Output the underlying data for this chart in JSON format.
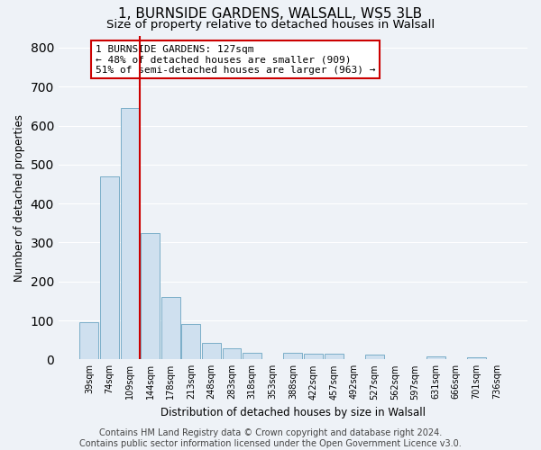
{
  "title": "1, BURNSIDE GARDENS, WALSALL, WS5 3LB",
  "subtitle": "Size of property relative to detached houses in Walsall",
  "xlabel": "Distribution of detached houses by size in Walsall",
  "ylabel": "Number of detached properties",
  "bar_labels": [
    "39sqm",
    "74sqm",
    "109sqm",
    "144sqm",
    "178sqm",
    "213sqm",
    "248sqm",
    "283sqm",
    "318sqm",
    "353sqm",
    "388sqm",
    "422sqm",
    "457sqm",
    "492sqm",
    "527sqm",
    "562sqm",
    "597sqm",
    "631sqm",
    "666sqm",
    "701sqm",
    "736sqm"
  ],
  "bar_values": [
    95,
    470,
    645,
    325,
    160,
    90,
    42,
    28,
    18,
    0,
    18,
    15,
    15,
    0,
    12,
    0,
    0,
    8,
    0,
    5,
    0
  ],
  "bar_color": "#cfe0ef",
  "bar_edge_color": "#7aaec8",
  "red_line_index": 2.5,
  "annotation_text": "1 BURNSIDE GARDENS: 127sqm\n← 48% of detached houses are smaller (909)\n51% of semi-detached houses are larger (963) →",
  "annotation_box_color": "#ffffff",
  "annotation_box_edge": "#cc0000",
  "ylim": [
    0,
    830
  ],
  "yticks": [
    0,
    100,
    200,
    300,
    400,
    500,
    600,
    700,
    800
  ],
  "footer": "Contains HM Land Registry data © Crown copyright and database right 2024.\nContains public sector information licensed under the Open Government Licence v3.0.",
  "background_color": "#eef2f7",
  "grid_color": "#ffffff",
  "title_fontsize": 11,
  "subtitle_fontsize": 9.5,
  "label_fontsize": 8.5,
  "tick_fontsize": 7,
  "footer_fontsize": 7,
  "red_line_color": "#cc0000"
}
